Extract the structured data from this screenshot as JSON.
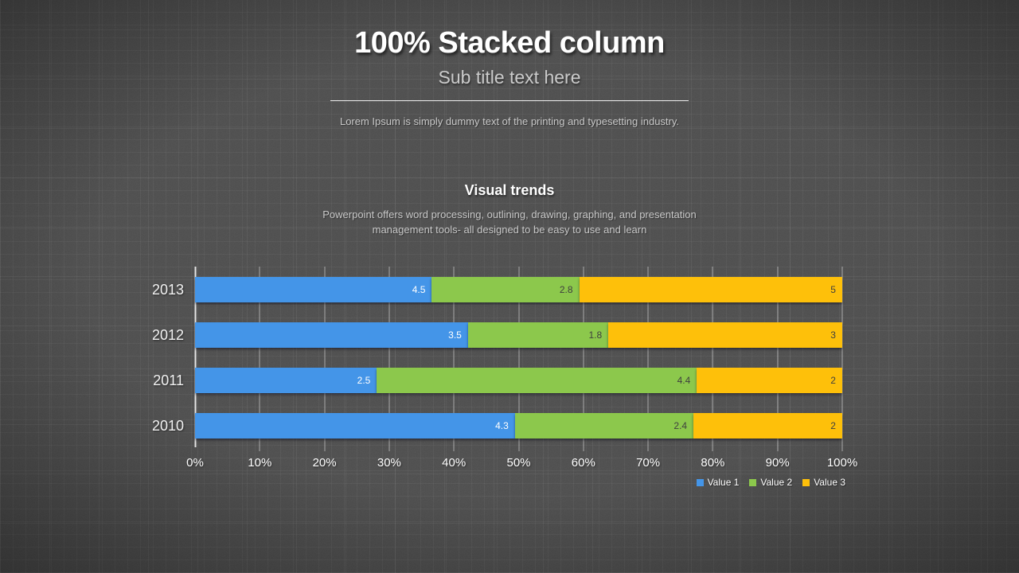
{
  "slide": {
    "title": "100% Stacked column",
    "subtitle": "Sub title text here",
    "description": "Lorem Ipsum is simply dummy text of the printing and typesetting industry."
  },
  "section": {
    "heading": "Visual trends",
    "body_lines": [
      "Powerpoint offers word processing, outlining, drawing, graphing, and presentation",
      "management tools- all designed to be easy to use and learn"
    ]
  },
  "chart_data": {
    "type": "bar",
    "orientation": "horizontal",
    "stacked": "100%",
    "categories": [
      "2013",
      "2012",
      "2011",
      "2010"
    ],
    "series": [
      {
        "name": "Value 1",
        "color": "#4495e8",
        "label_color": "#ffffff",
        "values": [
          4.5,
          3.5,
          2.5,
          4.3
        ]
      },
      {
        "name": "Value 2",
        "color": "#8cc84c",
        "label_color": "#3f3f3f",
        "values": [
          2.8,
          1.8,
          4.4,
          2.4
        ]
      },
      {
        "name": "Value 3",
        "color": "#fec00a",
        "label_color": "#3f3f3f",
        "values": [
          5,
          3,
          2,
          2
        ]
      }
    ],
    "x_ticks": [
      "0%",
      "10%",
      "20%",
      "30%",
      "40%",
      "50%",
      "60%",
      "70%",
      "80%",
      "90%",
      "100%"
    ],
    "x_range_percent": [
      0,
      100
    ],
    "grid": true,
    "value_labels": "inside-end",
    "legend_position": "bottom-right"
  },
  "colors": {
    "background": "#4d4d4d",
    "title_text": "#ffffff",
    "muted_text": "#c9c9c9",
    "gridline": "rgba(255,255,255,0.5)"
  }
}
